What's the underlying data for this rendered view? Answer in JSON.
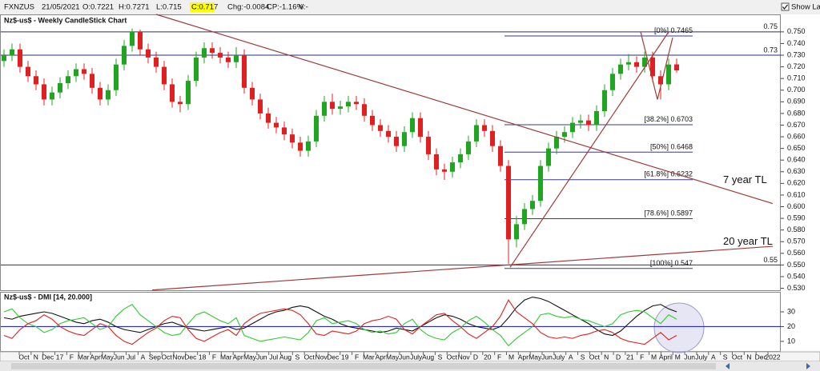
{
  "toolbar": {
    "symbol": "FXNZUS",
    "date": "21/05/2021",
    "open": "O:0.7221",
    "high": "H:0.7271",
    "low": "L:0.715",
    "close": "C:0.717",
    "change": "Chg:-0.0084",
    "change_pct": "CP:-1.16%",
    "volume": "V:-",
    "show_last": "Show Last"
  },
  "chart_data": [
    {
      "type": "candlestick",
      "title": "Nz$-us$ - Weekly CandleStick Chart",
      "up_color": "#1fa51f",
      "down_color": "#e02020",
      "open": [
        0.725,
        0.73,
        0.735,
        0.72,
        0.712,
        0.705,
        0.692,
        0.698,
        0.706,
        0.712,
        0.718,
        0.714,
        0.702,
        0.692,
        0.7,
        0.722,
        0.738,
        0.75,
        0.735,
        0.728,
        0.72,
        0.705,
        0.69,
        0.688,
        0.708,
        0.728,
        0.736,
        0.732,
        0.728,
        0.724,
        0.73,
        0.702,
        0.692,
        0.68,
        0.672,
        0.668,
        0.662,
        0.655,
        0.648,
        0.656,
        0.678,
        0.69,
        0.684,
        0.686,
        0.69,
        0.688,
        0.678,
        0.67,
        0.665,
        0.66,
        0.652,
        0.664,
        0.676,
        0.66,
        0.645,
        0.632,
        0.63,
        0.638,
        0.645,
        0.656,
        0.67,
        0.665,
        0.652,
        0.635,
        0.572,
        0.585,
        0.598,
        0.605,
        0.635,
        0.65,
        0.66,
        0.664,
        0.672,
        0.674,
        0.67,
        0.682,
        0.7,
        0.714,
        0.722,
        0.724,
        0.72,
        0.728,
        0.712,
        0.705,
        0.7221
      ],
      "high": [
        0.735,
        0.74,
        0.74,
        0.725,
        0.717,
        0.71,
        0.703,
        0.711,
        0.717,
        0.723,
        0.723,
        0.719,
        0.707,
        0.705,
        0.727,
        0.743,
        0.753,
        0.752,
        0.74,
        0.733,
        0.725,
        0.71,
        0.695,
        0.713,
        0.733,
        0.741,
        0.741,
        0.737,
        0.733,
        0.737,
        0.735,
        0.707,
        0.697,
        0.685,
        0.677,
        0.673,
        0.667,
        0.66,
        0.661,
        0.683,
        0.695,
        0.697,
        0.691,
        0.695,
        0.695,
        0.693,
        0.683,
        0.675,
        0.67,
        0.665,
        0.669,
        0.681,
        0.681,
        0.665,
        0.65,
        0.637,
        0.643,
        0.65,
        0.661,
        0.675,
        0.675,
        0.67,
        0.657,
        0.64,
        0.592,
        0.603,
        0.61,
        0.64,
        0.655,
        0.665,
        0.669,
        0.677,
        0.679,
        0.679,
        0.687,
        0.705,
        0.719,
        0.727,
        0.731,
        0.729,
        0.733,
        0.733,
        0.717,
        0.727,
        0.7271
      ],
      "low": [
        0.72,
        0.725,
        0.715,
        0.707,
        0.7,
        0.687,
        0.687,
        0.693,
        0.701,
        0.707,
        0.709,
        0.697,
        0.687,
        0.687,
        0.695,
        0.717,
        0.733,
        0.73,
        0.723,
        0.715,
        0.7,
        0.685,
        0.681,
        0.683,
        0.703,
        0.723,
        0.727,
        0.723,
        0.719,
        0.719,
        0.697,
        0.687,
        0.675,
        0.667,
        0.663,
        0.657,
        0.65,
        0.643,
        0.643,
        0.651,
        0.673,
        0.679,
        0.679,
        0.681,
        0.683,
        0.673,
        0.665,
        0.66,
        0.655,
        0.647,
        0.647,
        0.659,
        0.655,
        0.64,
        0.627,
        0.623,
        0.625,
        0.633,
        0.64,
        0.651,
        0.66,
        0.647,
        0.63,
        0.551,
        0.565,
        0.58,
        0.593,
        0.6,
        0.63,
        0.645,
        0.655,
        0.659,
        0.667,
        0.665,
        0.665,
        0.677,
        0.695,
        0.709,
        0.717,
        0.715,
        0.715,
        0.707,
        0.692,
        0.7,
        0.715
      ],
      "close": [
        0.73,
        0.735,
        0.72,
        0.712,
        0.705,
        0.692,
        0.698,
        0.706,
        0.712,
        0.718,
        0.714,
        0.702,
        0.692,
        0.7,
        0.722,
        0.738,
        0.75,
        0.735,
        0.728,
        0.72,
        0.705,
        0.69,
        0.688,
        0.708,
        0.728,
        0.736,
        0.732,
        0.728,
        0.724,
        0.73,
        0.702,
        0.692,
        0.68,
        0.672,
        0.668,
        0.662,
        0.655,
        0.648,
        0.656,
        0.678,
        0.69,
        0.684,
        0.686,
        0.69,
        0.688,
        0.678,
        0.67,
        0.665,
        0.66,
        0.652,
        0.664,
        0.676,
        0.66,
        0.645,
        0.632,
        0.63,
        0.638,
        0.645,
        0.656,
        0.67,
        0.665,
        0.652,
        0.635,
        0.572,
        0.585,
        0.598,
        0.605,
        0.635,
        0.65,
        0.66,
        0.664,
        0.672,
        0.674,
        0.67,
        0.682,
        0.7,
        0.714,
        0.722,
        0.724,
        0.72,
        0.728,
        0.712,
        0.705,
        0.722,
        0.717
      ],
      "ylim": [
        0.529,
        0.765
      ],
      "yticks": [
        {
          "value": 0.53,
          "label": "0.530"
        },
        {
          "value": 0.54,
          "label": "0.540"
        },
        {
          "value": 0.55,
          "label": "0.550"
        },
        {
          "value": 0.56,
          "label": "0.560"
        },
        {
          "value": 0.57,
          "label": "0.570"
        },
        {
          "value": 0.58,
          "label": "0.580"
        },
        {
          "value": 0.59,
          "label": "0.590"
        },
        {
          "value": 0.6,
          "label": "0.600"
        },
        {
          "value": 0.61,
          "label": "0.610"
        },
        {
          "value": 0.62,
          "label": "0.620"
        },
        {
          "value": 0.63,
          "label": "0.630"
        },
        {
          "value": 0.64,
          "label": "0.640"
        },
        {
          "value": 0.65,
          "label": "0.650"
        },
        {
          "value": 0.66,
          "label": "0.660"
        },
        {
          "value": 0.67,
          "label": "0.670"
        },
        {
          "value": 0.68,
          "label": "0.680"
        },
        {
          "value": 0.69,
          "label": "0.690"
        },
        {
          "value": 0.7,
          "label": "0.700"
        },
        {
          "value": 0.71,
          "label": "0.710"
        },
        {
          "value": 0.72,
          "label": "0.720"
        },
        {
          "value": 0.73,
          "label": "0.730"
        },
        {
          "value": 0.74,
          "label": "0.740"
        },
        {
          "value": 0.75,
          "label": "0.750"
        }
      ],
      "levels": [
        0.75,
        0.73,
        0.55
      ],
      "level_color": "#2b2b7a",
      "fib_levels": [
        {
          "label": "[0%]",
          "value": 0.7465
        },
        {
          "label": "[38.2%]",
          "value": 0.6703
        },
        {
          "label": "[50%]",
          "value": 0.6468
        },
        {
          "label": "[61.8%]",
          "value": 0.6232
        },
        {
          "label": "[78.6%]",
          "value": 0.5897
        },
        {
          "label": "[100%]",
          "value": 0.547
        }
      ],
      "fib_range": [
        62.5,
        86
      ],
      "fib_color": "#3a3a8a",
      "trendlines": [
        {
          "name": "7 year TL",
          "x": [
            19,
            96
          ],
          "y": [
            0.765,
            0.6027
          ]
        },
        {
          "name": "20 year TL",
          "x": [
            18.5,
            96
          ],
          "y": [
            0.5285,
            0.566
          ]
        },
        {
          "x": [
            63.2,
            83
          ],
          "y": [
            0.548,
            0.75
          ]
        },
        {
          "x": [
            79.5,
            81.6,
            83.5
          ],
          "y": [
            0.75,
            0.692,
            0.745
          ]
        }
      ],
      "trend_color": "#a03a3a"
    },
    {
      "type": "line",
      "title": "Nz$-us$ - DMI [14, 20.000]",
      "series": [
        {
          "color": "#111111",
          "values": [
            26,
            25,
            27,
            28,
            29,
            30,
            29,
            27,
            25,
            23,
            22,
            24,
            25,
            23,
            20,
            18,
            17,
            16,
            18,
            20,
            22,
            23,
            21,
            19,
            18,
            17,
            18,
            19,
            20,
            18,
            19,
            22,
            25,
            28,
            30,
            31,
            33,
            34,
            33,
            30,
            27,
            25,
            22,
            20,
            19,
            18,
            17,
            16,
            17,
            19,
            18,
            17,
            20,
            23,
            26,
            28,
            27,
            25,
            22,
            20,
            19,
            18,
            20,
            26,
            33,
            38,
            40,
            39,
            37,
            34,
            31,
            28,
            25,
            22,
            18,
            15,
            14,
            17,
            22,
            27,
            31,
            34,
            35,
            32,
            30
          ]
        },
        {
          "color": "#2ecc2e",
          "values": [
            30,
            32,
            26,
            22,
            20,
            16,
            18,
            22,
            24,
            25,
            26,
            22,
            18,
            20,
            27,
            32,
            35,
            28,
            24,
            20,
            16,
            14,
            15,
            22,
            28,
            30,
            27,
            24,
            22,
            26,
            14,
            12,
            10,
            11,
            12,
            13,
            12,
            11,
            16,
            24,
            26,
            22,
            23,
            24,
            22,
            18,
            16,
            17,
            15,
            16,
            22,
            25,
            18,
            14,
            12,
            11,
            16,
            19,
            24,
            27,
            23,
            18,
            14,
            7,
            12,
            16,
            20,
            28,
            29,
            27,
            26,
            27,
            25,
            24,
            22,
            20,
            22,
            28,
            30,
            31,
            30,
            26,
            22,
            28,
            25
          ]
        },
        {
          "color": "#e02020",
          "values": [
            14,
            12,
            18,
            22,
            24,
            28,
            25,
            20,
            17,
            15,
            14,
            18,
            22,
            20,
            14,
            10,
            8,
            12,
            16,
            19,
            24,
            27,
            26,
            18,
            12,
            10,
            13,
            16,
            18,
            14,
            22,
            26,
            29,
            30,
            31,
            32,
            31,
            28,
            22,
            15,
            14,
            17,
            16,
            15,
            17,
            22,
            24,
            25,
            27,
            25,
            18,
            15,
            20,
            24,
            28,
            29,
            24,
            20,
            15,
            12,
            16,
            20,
            27,
            38,
            30,
            26,
            22,
            16,
            13,
            12,
            13,
            12,
            14,
            15,
            17,
            18,
            16,
            12,
            10,
            9,
            8,
            12,
            16,
            11,
            14
          ]
        }
      ],
      "reference_line": 20,
      "reference_color": "#2a2ad0",
      "ylim": [
        4,
        43
      ],
      "yticks": [
        10,
        20,
        30
      ],
      "x_labels": [
        "Oct",
        "N",
        "Dec",
        "17",
        "F",
        "Mar",
        "Apr",
        "May",
        "Jun",
        "Jul",
        "A",
        "Sep",
        "Oct",
        "Nov",
        "Dec",
        "18",
        "F",
        "Mar",
        "Apr",
        "May",
        "Jun",
        "Jul",
        "Aug",
        "S",
        "Oct",
        "Nov",
        "Dec",
        "19",
        "F",
        "Mar",
        "Apr",
        "May",
        "Jun",
        "July",
        "Aug",
        "S",
        "Oct",
        "Nov",
        "D",
        "20",
        "F",
        "M",
        "Apr",
        "May",
        "Jun",
        "July",
        "A",
        "S",
        "Oct",
        "N",
        "D",
        "21",
        "F",
        "M",
        "April",
        "M",
        "Jun",
        "July",
        "A",
        "S",
        "Oct",
        "N",
        "Dec",
        "2022"
      ]
    }
  ]
}
